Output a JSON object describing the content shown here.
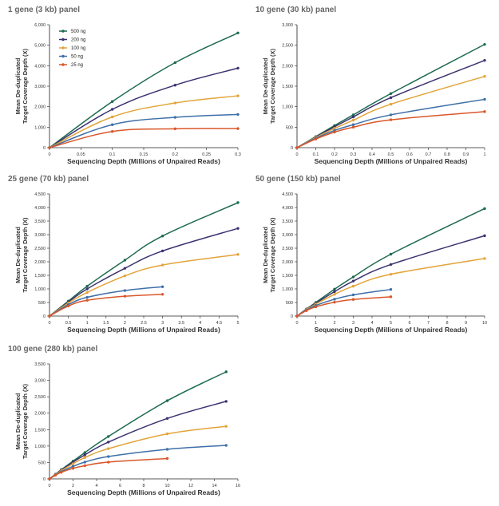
{
  "chart_data": [
    {
      "type": "line",
      "title": "1 gene (3 kb) panel",
      "xlabel": "Sequencing Depth (Millions of Unpaired Reads)",
      "ylabel": [
        "Mean De-duplicated",
        "Target Coverage Depth (X)"
      ],
      "xlim": [
        0,
        0.3
      ],
      "ylim": [
        0,
        6000
      ],
      "xticks": [
        0,
        0.05,
        0.1,
        0.15,
        0.2,
        0.25,
        0.3
      ],
      "xtick_labels": [
        "0",
        "0.05",
        "0.1",
        "0.15",
        "0.2",
        "0.25",
        "0.3"
      ],
      "yticks": [
        0,
        1000,
        2000,
        3000,
        4000,
        5000,
        6000
      ],
      "ytick_labels": [
        "0",
        "1,000",
        "2,000",
        "3,000",
        "4,000",
        "5,000",
        "6,000"
      ],
      "legend": "top-left",
      "series": [
        {
          "name": "500 ng",
          "color": "#1e6b52",
          "x": [
            0,
            0.1,
            0.2,
            0.3
          ],
          "y": [
            0,
            2250,
            4150,
            5600
          ]
        },
        {
          "name": "200 ng",
          "color": "#3b3370",
          "x": [
            0,
            0.1,
            0.2,
            0.3
          ],
          "y": [
            0,
            1870,
            3050,
            3880
          ]
        },
        {
          "name": "100 ng",
          "color": "#e2a43a",
          "x": [
            0,
            0.1,
            0.2,
            0.3
          ],
          "y": [
            0,
            1500,
            2180,
            2530
          ]
        },
        {
          "name": "50 ng",
          "color": "#3e6fa8",
          "x": [
            0,
            0.1,
            0.2,
            0.3
          ],
          "y": [
            0,
            1120,
            1480,
            1620
          ]
        },
        {
          "name": "25 ng",
          "color": "#d9572a",
          "x": [
            0,
            0.1,
            0.2,
            0.3
          ],
          "y": [
            0,
            790,
            920,
            930
          ]
        }
      ]
    },
    {
      "type": "line",
      "title": "10 gene (30 kb) panel",
      "xlabel": "Sequencing Depth (Millions of Unpaired Reads)",
      "ylabel": [
        "Mean De-duplicated",
        "Target Coverage Depth (X)"
      ],
      "xlim": [
        0,
        1
      ],
      "ylim": [
        0,
        3000
      ],
      "xticks": [
        0,
        0.1,
        0.2,
        0.3,
        0.4,
        0.5,
        0.6,
        0.7,
        0.8,
        0.9,
        1
      ],
      "xtick_labels": [
        "0",
        "0.1",
        "0.2",
        "0.3",
        "0.4",
        "0.5",
        "0.6",
        "0.7",
        "0.8",
        "0.9",
        "1"
      ],
      "yticks": [
        0,
        500,
        1000,
        1500,
        2000,
        2500,
        3000
      ],
      "ytick_labels": [
        "0",
        "500",
        "1,000",
        "1,500",
        "2,000",
        "2,500",
        "3,000"
      ],
      "series": [
        {
          "name": "500 ng",
          "color": "#1e6b52",
          "x": [
            0,
            0.1,
            0.2,
            0.3,
            0.5,
            1
          ],
          "y": [
            0,
            270,
            540,
            800,
            1320,
            2520
          ]
        },
        {
          "name": "200 ng",
          "color": "#3b3370",
          "x": [
            0,
            0.1,
            0.2,
            0.3,
            0.5,
            1
          ],
          "y": [
            0,
            260,
            510,
            750,
            1220,
            2130
          ]
        },
        {
          "name": "100 ng",
          "color": "#e2a43a",
          "x": [
            0,
            0.1,
            0.2,
            0.3,
            0.5,
            1
          ],
          "y": [
            0,
            250,
            470,
            670,
            1060,
            1740
          ]
        },
        {
          "name": "50 ng",
          "color": "#3e6fa8",
          "x": [
            0,
            0.1,
            0.2,
            0.3,
            0.5,
            1
          ],
          "y": [
            0,
            230,
            420,
            560,
            800,
            1180
          ]
        },
        {
          "name": "25 ng",
          "color": "#d9572a",
          "x": [
            0,
            0.1,
            0.2,
            0.3,
            0.5,
            1
          ],
          "y": [
            0,
            210,
            380,
            500,
            680,
            880
          ]
        }
      ]
    },
    {
      "type": "line",
      "title": "25 gene (70 kb) panel",
      "xlabel": "Sequencing Depth (Millions of Unpaired Reads)",
      "ylabel": [
        "Mean De-duplicated",
        "Target Coverage Depth (X)"
      ],
      "xlim": [
        0,
        5
      ],
      "ylim": [
        0,
        4500
      ],
      "xticks": [
        0,
        0.5,
        1,
        1.5,
        2,
        2.5,
        3,
        3.5,
        4,
        4.5,
        5
      ],
      "xtick_labels": [
        "0",
        "0.5",
        "1",
        "1.5",
        "2",
        "2.5",
        "3",
        "3.5",
        "4",
        "4.5",
        "5"
      ],
      "yticks": [
        0,
        500,
        1000,
        1500,
        2000,
        2500,
        3000,
        3500,
        4000,
        4500
      ],
      "ytick_labels": [
        "0",
        "500",
        "1,000",
        "1,500",
        "2,000",
        "2,500",
        "3,000",
        "3,500",
        "4,000",
        "4,500"
      ],
      "series": [
        {
          "name": "500 ng",
          "color": "#1e6b52",
          "x": [
            0,
            0.5,
            1,
            2,
            3,
            5
          ],
          "y": [
            0,
            550,
            1100,
            2060,
            2950,
            4180
          ]
        },
        {
          "name": "200 ng",
          "color": "#3b3370",
          "x": [
            0,
            0.5,
            1,
            2,
            3,
            5
          ],
          "y": [
            0,
            520,
            1000,
            1760,
            2400,
            3230
          ]
        },
        {
          "name": "100 ng",
          "color": "#e2a43a",
          "x": [
            0,
            0.5,
            1,
            2,
            3,
            5
          ],
          "y": [
            0,
            480,
            870,
            1480,
            1880,
            2270
          ]
        },
        {
          "name": "50 ng",
          "color": "#3e6fa8",
          "x": [
            0,
            0.5,
            1,
            2,
            3
          ],
          "y": [
            0,
            420,
            690,
            940,
            1080
          ]
        },
        {
          "name": "25 ng",
          "color": "#d9572a",
          "x": [
            0,
            0.5,
            1,
            2,
            3
          ],
          "y": [
            0,
            370,
            580,
            730,
            800
          ]
        }
      ]
    },
    {
      "type": "line",
      "title": "50 gene (150 kb) panel",
      "xlabel": "Sequencing Depth (Millions of Unpaired Reads)",
      "ylabel": [
        "Mean De-duplicated",
        "Target Coverage Depth (X)"
      ],
      "xlim": [
        0,
        10
      ],
      "ylim": [
        0,
        4500
      ],
      "xticks": [
        0,
        1,
        2,
        3,
        4,
        5,
        6,
        7,
        8,
        9,
        10
      ],
      "xtick_labels": [
        "0",
        "1",
        "2",
        "3",
        "4",
        "5",
        "6",
        "7",
        "8",
        "9",
        "10"
      ],
      "yticks": [
        0,
        500,
        1000,
        1500,
        2000,
        2500,
        3000,
        3500,
        4000,
        4500
      ],
      "ytick_labels": [
        "0",
        "500",
        "1,000",
        "1,500",
        "2,000",
        "2,500",
        "3,000",
        "3,500",
        "4,000",
        "4,500"
      ],
      "series": [
        {
          "name": "500 ng",
          "color": "#1e6b52",
          "x": [
            0,
            0.5,
            1,
            2,
            3,
            5,
            10
          ],
          "y": [
            0,
            260,
            500,
            990,
            1440,
            2280,
            3960
          ]
        },
        {
          "name": "200 ng",
          "color": "#3b3370",
          "x": [
            0,
            0.5,
            1,
            2,
            3,
            5,
            10
          ],
          "y": [
            0,
            250,
            470,
            900,
            1290,
            1900,
            2960
          ]
        },
        {
          "name": "100 ng",
          "color": "#e2a43a",
          "x": [
            0,
            0.5,
            1,
            2,
            3,
            5,
            10
          ],
          "y": [
            0,
            240,
            440,
            800,
            1100,
            1540,
            2120
          ]
        },
        {
          "name": "50 ng",
          "color": "#3e6fa8",
          "x": [
            0,
            0.5,
            1,
            2,
            3,
            5
          ],
          "y": [
            0,
            220,
            390,
            620,
            780,
            980
          ]
        },
        {
          "name": "25 ng",
          "color": "#d9572a",
          "x": [
            0,
            0.5,
            1,
            2,
            3,
            5
          ],
          "y": [
            0,
            200,
            340,
            510,
            610,
            710
          ]
        }
      ]
    },
    {
      "type": "line",
      "title": "100 gene (280 kb) panel",
      "xlabel": "Sequencing Depth (Millions of Unpaired Reads)",
      "ylabel": [
        "Mean De-duplicated",
        "Target Coverage Depth (X)"
      ],
      "xlim": [
        0,
        16
      ],
      "ylim": [
        0,
        3500
      ],
      "xticks": [
        0,
        2,
        4,
        6,
        8,
        10,
        12,
        14,
        16
      ],
      "xtick_labels": [
        "0",
        "2",
        "4",
        "6",
        "8",
        "10",
        "12",
        "14",
        "16"
      ],
      "yticks": [
        0,
        500,
        1000,
        1500,
        2000,
        2500,
        3000,
        3500
      ],
      "ytick_labels": [
        "0",
        "500",
        "1,000",
        "1,500",
        "2,000",
        "2,500",
        "3,000",
        "3,500"
      ],
      "series": [
        {
          "name": "500 ng",
          "color": "#1e6b52",
          "x": [
            0,
            0.5,
            1,
            2,
            3,
            5,
            10,
            15
          ],
          "y": [
            0,
            140,
            280,
            540,
            800,
            1290,
            2380,
            3260
          ]
        },
        {
          "name": "200 ng",
          "color": "#3b3370",
          "x": [
            0,
            0.5,
            1,
            2,
            3,
            5,
            10,
            15
          ],
          "y": [
            0,
            135,
            270,
            510,
            730,
            1120,
            1840,
            2360
          ]
        },
        {
          "name": "100 ng",
          "color": "#e2a43a",
          "x": [
            0,
            0.5,
            1,
            2,
            3,
            5,
            10,
            15
          ],
          "y": [
            0,
            130,
            250,
            460,
            650,
            920,
            1370,
            1600
          ]
        },
        {
          "name": "50 ng",
          "color": "#3e6fa8",
          "x": [
            0,
            0.5,
            1,
            2,
            3,
            5,
            10,
            15
          ],
          "y": [
            0,
            120,
            220,
            380,
            510,
            680,
            900,
            1020
          ]
        },
        {
          "name": "25 ng",
          "color": "#d9572a",
          "x": [
            0,
            0.5,
            1,
            2,
            3,
            5,
            10
          ],
          "y": [
            0,
            110,
            200,
            320,
            400,
            510,
            620
          ]
        }
      ]
    }
  ]
}
